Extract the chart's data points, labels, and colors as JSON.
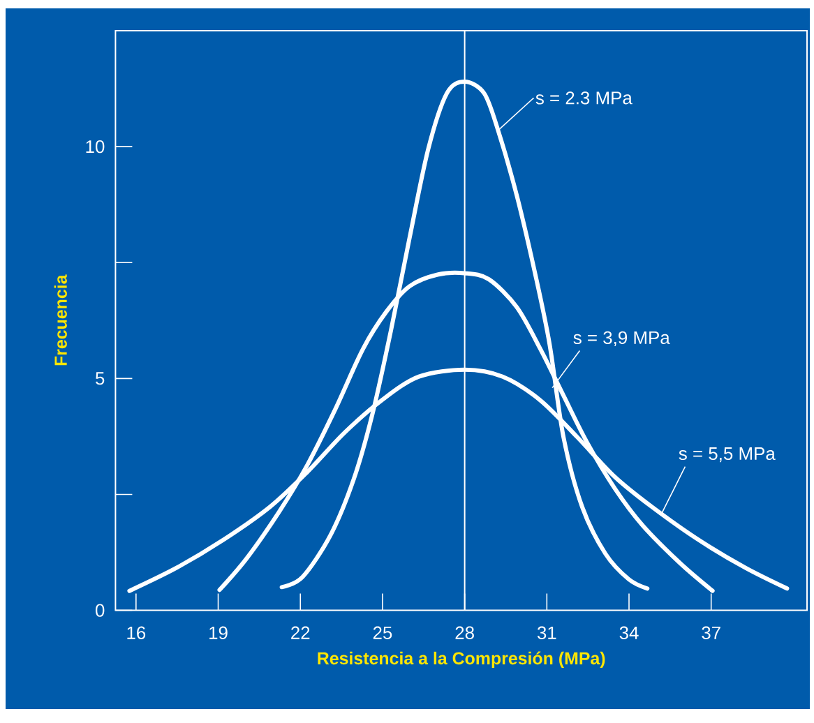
{
  "chart_data": {
    "type": "line",
    "xlabel": "Resistencia a la Compresión (MPa)",
    "ylabel": "Frecuencia",
    "xlim": [
      15.25,
      40.5
    ],
    "ylim": [
      0,
      12.5
    ],
    "xticks": [
      16,
      19,
      22,
      25,
      28,
      31,
      34,
      37
    ],
    "yticks": [
      0,
      {
        "value": 2.5,
        "label": null
      },
      5,
      {
        "value": 7.5,
        "label": null
      },
      10
    ],
    "grid": false,
    "marker": "none",
    "line_style": "solid",
    "series": [
      {
        "color": "#ffffff",
        "x": [
          21.32,
          22.08,
          23.1,
          23.95,
          24.63,
          25.31,
          25.99,
          26.67,
          27.35,
          28,
          28.71,
          29.22,
          29.9,
          30.58,
          31.1,
          31.61,
          32.29,
          33.14,
          33.99,
          34.67
        ],
        "values": [
          0.5,
          0.72,
          1.62,
          2.83,
          4.23,
          6.04,
          8.04,
          9.95,
          11.15,
          11.4,
          11.15,
          10.35,
          8.95,
          7.24,
          5.74,
          3.73,
          2.23,
          1.22,
          0.67,
          0.47
        ]
      },
      {
        "color": "#ffffff",
        "x": [
          19.05,
          20.04,
          21.23,
          22.25,
          23.27,
          24.29,
          25.14,
          25.99,
          27.01,
          28,
          28.88,
          29.9,
          30.76,
          31.61,
          32.46,
          33.48,
          34.5,
          35.86,
          37.05
        ],
        "values": [
          0.44,
          1.12,
          2.13,
          3.13,
          4.33,
          5.64,
          6.44,
          6.99,
          7.24,
          7.27,
          7.14,
          6.54,
          5.64,
          4.63,
          3.63,
          2.63,
          1.83,
          1.02,
          0.42
        ]
      },
      {
        "color": "#ffffff",
        "x": [
          15.76,
          17.49,
          19.19,
          20.89,
          22.25,
          23.61,
          24.97,
          26.33,
          28,
          29.39,
          30.76,
          32.12,
          33.48,
          34.84,
          36.54,
          38.24,
          39.77
        ],
        "values": [
          0.42,
          0.92,
          1.52,
          2.23,
          2.98,
          3.83,
          4.53,
          5.04,
          5.19,
          5.04,
          4.53,
          3.73,
          2.88,
          2.23,
          1.52,
          0.92,
          0.47
        ]
      }
    ],
    "ref_lines": [
      {
        "axis": "x",
        "value": 28,
        "color": "#ffffff"
      }
    ],
    "annotations": [
      {
        "text": "s = 2.3 MPa",
        "x": 29.22,
        "y": 10.35
      },
      {
        "text": "s = 3,9 MPa",
        "x": 31.2,
        "y": 4.8
      },
      {
        "text": "s = 5,5 MPa",
        "x": 35.2,
        "y": 2.1
      }
    ]
  }
}
